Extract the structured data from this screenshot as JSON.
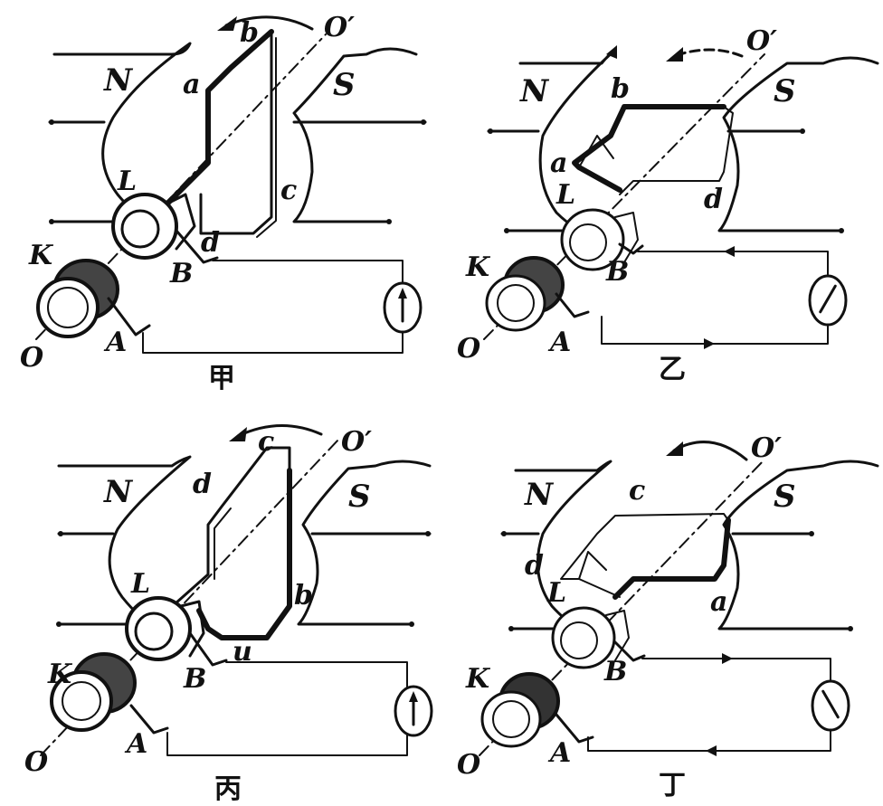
{
  "panels": [
    {
      "caption": "甲",
      "labels": {
        "N": "N",
        "S": "S",
        "axis_start": "O",
        "axis_end": "O′",
        "ring_L": "L",
        "ring_K": "K",
        "brush_A": "A",
        "brush_B": "B",
        "c1": "a",
        "c2": "b",
        "c3": "c",
        "c4": "d"
      },
      "meter": "zero"
    },
    {
      "caption": "乙",
      "labels": {
        "N": "N",
        "S": "S",
        "axis_start": "O",
        "axis_end": "O′",
        "ring_L": "L",
        "ring_K": "K",
        "brush_A": "A",
        "brush_B": "B",
        "c1": "a",
        "c2": "b",
        "c3": "",
        "c4": "d"
      },
      "meter": "right"
    },
    {
      "caption": "丙",
      "labels": {
        "N": "N",
        "S": "S",
        "axis_start": "O",
        "axis_end": "O′",
        "ring_L": "L",
        "ring_K": "K",
        "brush_A": "A",
        "brush_B": "B",
        "c1": "u",
        "c2": "b",
        "c3": "c",
        "c4": "d"
      },
      "meter": "zero"
    },
    {
      "caption": "丁",
      "labels": {
        "N": "N",
        "S": "S",
        "axis_start": "O",
        "axis_end": "O′",
        "ring_L": "L",
        "ring_K": "K",
        "brush_A": "A",
        "brush_B": "B",
        "c1": "a",
        "c2": "",
        "c3": "c",
        "c4": "d"
      },
      "meter": "left"
    }
  ]
}
